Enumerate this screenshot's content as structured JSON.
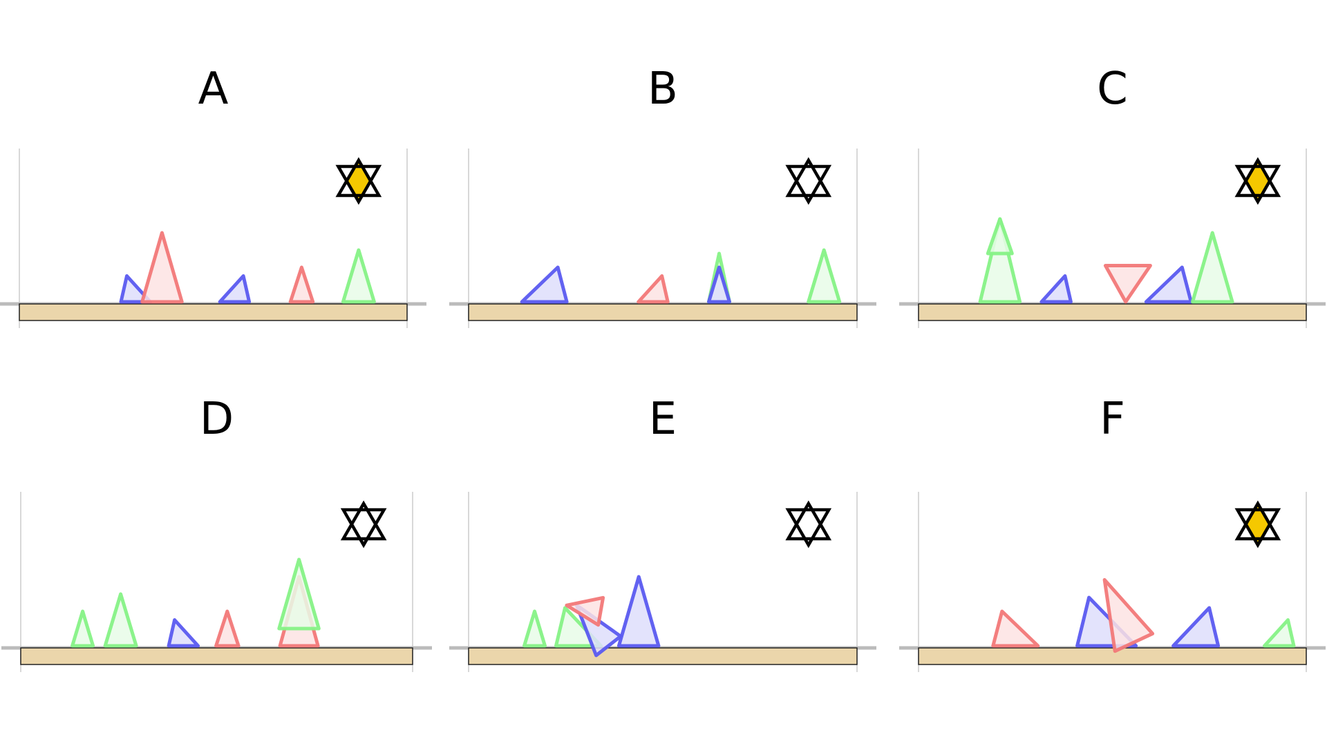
{
  "colors": {
    "red": "#f27878",
    "green": "#86f286",
    "blue": "#5a5af0",
    "red_fill": "#fde3e3",
    "green_fill": "#e8fce8",
    "blue_fill": "#dedefb",
    "floor": "#ebd6ab",
    "star_fill": "#f5c800",
    "guide": "#cccccc",
    "ground": "#bbbbbb"
  },
  "panels": [
    {
      "label": "A",
      "star_filled": true,
      "shapes": [
        {
          "kind": "wedge",
          "color": "blue",
          "dir": "right",
          "pos": 0.3,
          "w": 0.085,
          "h": 0.075
        },
        {
          "kind": "spike",
          "color": "red",
          "pos": 0.368,
          "w": 0.115,
          "h": 0.2
        },
        {
          "kind": "wedge",
          "color": "blue",
          "dir": "left",
          "pos": 0.555,
          "w": 0.085,
          "h": 0.075
        },
        {
          "kind": "spike",
          "color": "red",
          "pos": 0.728,
          "w": 0.065,
          "h": 0.1
        },
        {
          "kind": "spike",
          "color": "green",
          "pos": 0.875,
          "w": 0.09,
          "h": 0.15
        }
      ]
    },
    {
      "label": "B",
      "star_filled": false,
      "shapes": [
        {
          "kind": "wedge",
          "color": "blue",
          "dir": "left",
          "pos": 0.195,
          "w": 0.13,
          "h": 0.1
        },
        {
          "kind": "wedge",
          "color": "red",
          "dir": "left",
          "pos": 0.475,
          "w": 0.085,
          "h": 0.075
        },
        {
          "kind": "spike",
          "color": "green",
          "pos": 0.645,
          "w": 0.06,
          "h": 0.14
        },
        {
          "kind": "spike",
          "color": "blue",
          "pos": 0.645,
          "w": 0.06,
          "h": 0.1
        },
        {
          "kind": "spike",
          "color": "green",
          "pos": 0.915,
          "w": 0.09,
          "h": 0.15
        }
      ]
    },
    {
      "label": "C",
      "star_filled": true,
      "shapes": [
        {
          "kind": "spike",
          "color": "green",
          "pos": 0.21,
          "w": 0.115,
          "h": 0.24
        },
        {
          "kind": "spike",
          "color": "green",
          "pos": 0.21,
          "w": 0.07,
          "h": 0.1,
          "lift": 0.14
        },
        {
          "kind": "wedge",
          "color": "blue",
          "dir": "left",
          "pos": 0.355,
          "w": 0.085,
          "h": 0.075
        },
        {
          "kind": "flag",
          "color": "red",
          "pos": 0.54,
          "w": 0.13,
          "h": 0.105
        },
        {
          "kind": "wedge",
          "color": "blue",
          "dir": "left",
          "pos": 0.645,
          "w": 0.13,
          "h": 0.1
        },
        {
          "kind": "spike",
          "color": "green",
          "pos": 0.758,
          "w": 0.115,
          "h": 0.2
        }
      ]
    },
    {
      "label": "D",
      "star_filled": false,
      "shapes": [
        {
          "kind": "spike",
          "color": "green",
          "pos": 0.158,
          "w": 0.06,
          "h": 0.1
        },
        {
          "kind": "spike",
          "color": "green",
          "pos": 0.255,
          "w": 0.09,
          "h": 0.15
        },
        {
          "kind": "wedge",
          "color": "blue",
          "dir": "right",
          "pos": 0.415,
          "w": 0.085,
          "h": 0.075
        },
        {
          "kind": "spike",
          "color": "red",
          "pos": 0.527,
          "w": 0.065,
          "h": 0.1
        },
        {
          "kind": "spike",
          "color": "red",
          "pos": 0.71,
          "w": 0.11,
          "h": 0.2
        },
        {
          "kind": "spike",
          "color": "green",
          "pos": 0.71,
          "w": 0.115,
          "h": 0.2,
          "lift": 0.05
        }
      ]
    },
    {
      "label": "E",
      "star_filled": false,
      "shapes": [
        {
          "kind": "spike",
          "color": "green",
          "pos": 0.17,
          "w": 0.06,
          "h": 0.1
        },
        {
          "kind": "wedge",
          "color": "green",
          "dir": "right",
          "pos": 0.283,
          "w": 0.13,
          "h": 0.11
        },
        {
          "kind": "tilted",
          "color": "blue",
          "pos": 0.36,
          "w": 0.09,
          "h": 0.15,
          "angle": -38
        },
        {
          "kind": "tilted",
          "color": "red",
          "pos": 0.34,
          "w": 0.08,
          "h": 0.1,
          "angle": -80,
          "lift": 0.1
        },
        {
          "kind": "spike",
          "color": "blue",
          "pos": 0.438,
          "w": 0.115,
          "h": 0.2
        }
      ]
    },
    {
      "label": "F",
      "star_filled": true,
      "shapes": [
        {
          "kind": "wedge",
          "color": "red",
          "dir": "right",
          "pos": 0.25,
          "w": 0.13,
          "h": 0.1
        },
        {
          "kind": "wedge",
          "color": "blue",
          "dir": "right",
          "pos": 0.485,
          "w": 0.17,
          "h": 0.14
        },
        {
          "kind": "tilted",
          "color": "red",
          "pos": 0.555,
          "w": 0.12,
          "h": 0.2,
          "angle": -25,
          "lift": 0.01
        },
        {
          "kind": "wedge",
          "color": "blue",
          "dir": "left",
          "pos": 0.715,
          "w": 0.13,
          "h": 0.11
        },
        {
          "kind": "wedge",
          "color": "green",
          "dir": "left",
          "pos": 0.93,
          "w": 0.085,
          "h": 0.075
        }
      ]
    }
  ]
}
